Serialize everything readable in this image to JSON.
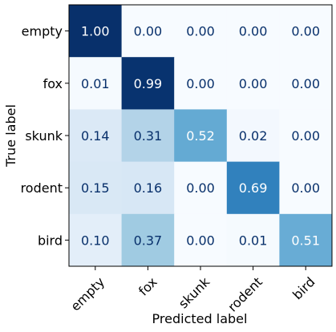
{
  "chart_data": {
    "type": "heatmap",
    "title": "",
    "xlabel": "Predicted label",
    "ylabel": "True label",
    "x_categories": [
      "empty",
      "fox",
      "skunk",
      "rodent",
      "bird"
    ],
    "y_categories": [
      "empty",
      "fox",
      "skunk",
      "rodent",
      "bird"
    ],
    "value_format": "0.00",
    "values": [
      [
        1.0,
        0.0,
        0.0,
        0.0,
        0.0
      ],
      [
        0.01,
        0.99,
        0.0,
        0.0,
        0.0
      ],
      [
        0.14,
        0.31,
        0.52,
        0.02,
        0.0
      ],
      [
        0.15,
        0.16,
        0.0,
        0.69,
        0.0
      ],
      [
        0.1,
        0.37,
        0.0,
        0.01,
        0.51
      ]
    ],
    "colormap": "Blues",
    "vmin": 0,
    "vmax": 1,
    "colors": {
      "text_light": "#ffffff",
      "text_dark": "#08306b"
    },
    "grid": false,
    "legend": "none"
  }
}
